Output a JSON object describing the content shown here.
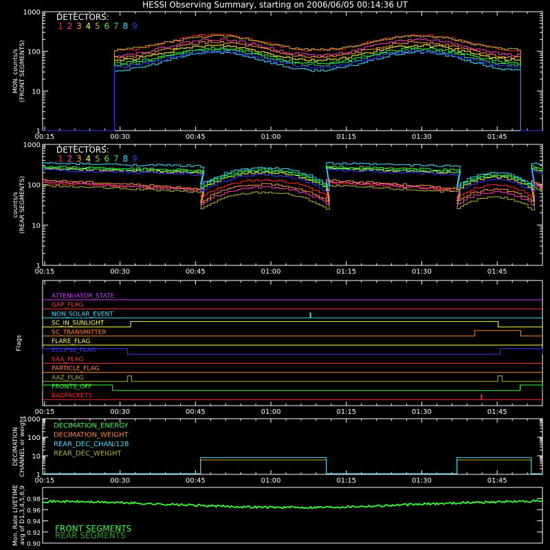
{
  "title": "HESSI Observing Summary, starting on 2006/06/05 00:14:36 UT",
  "colors": {
    "d1": "#ff2a2a",
    "d2": "#ff40b0",
    "d3": "#ff9a3c",
    "d4": "#ffff40",
    "d5": "#b5b535",
    "d6": "#3cff3c",
    "d7": "#2ad46a",
    "d8": "#40e0ff",
    "d9": "#3a3aff",
    "axes": "#ffffff"
  },
  "chart_data": [
    {
      "type": "line",
      "ylabel": [
        "MON. counts/s",
        "(FRONT SEGMENTS)"
      ],
      "yscale": "log",
      "ylim": [
        1,
        1000
      ],
      "yticks": [
        "1",
        "10",
        "100",
        "1000"
      ],
      "xlim": [
        0.2433,
        1.9
      ],
      "xticks": [
        "00:15",
        "00:30",
        "00:45",
        "01:00",
        "01:15",
        "01:30",
        "01:45"
      ],
      "legend_title": "DETECTORS:",
      "legend_entries": [
        "1",
        "2",
        "3",
        "4",
        "5",
        "6",
        "7",
        "8",
        "9"
      ],
      "legend_placement": "top-left",
      "data_start": 0.475,
      "data_end": 1.825,
      "series": [
        {
          "name": "1",
          "color_key": "d1",
          "low": 105,
          "high": 260
        },
        {
          "name": "2",
          "color_key": "d2",
          "low": 80,
          "high": 200
        },
        {
          "name": "3",
          "color_key": "d3",
          "low": 70,
          "high": 170
        },
        {
          "name": "4",
          "color_key": "d4",
          "low": 60,
          "high": 140
        },
        {
          "name": "5",
          "color_key": "d5",
          "low": 110,
          "high": 240
        },
        {
          "name": "6",
          "color_key": "d6",
          "low": 50,
          "high": 120
        },
        {
          "name": "7",
          "color_key": "d7",
          "low": 45,
          "high": 110
        },
        {
          "name": "8",
          "color_key": "d8",
          "low": 33,
          "high": 95
        },
        {
          "name": "9",
          "color_key": "d9",
          "low": 40,
          "high": 100
        }
      ]
    },
    {
      "type": "line",
      "ylabel": [
        "counts/s",
        "(REAR SEGMENTS)"
      ],
      "yscale": "log",
      "ylim": [
        1,
        1000
      ],
      "yticks": [
        "1",
        "10",
        "100",
        "1000"
      ],
      "xlim": [
        0.2433,
        1.9
      ],
      "xticks": [
        "00:15",
        "00:30",
        "00:45",
        "01:00",
        "01:15",
        "01:30",
        "01:45"
      ],
      "legend_title": "DETECTORS:",
      "legend_entries": [
        "1",
        "2",
        "3",
        "4",
        "5",
        "6",
        "7",
        "8",
        "9"
      ],
      "legend_placement": "top-left",
      "segments": [
        [
          0.2433,
          0.7667
        ],
        [
          0.7667,
          1.1833
        ],
        [
          1.1833,
          1.6167
        ],
        [
          1.6167,
          1.8633
        ],
        [
          1.8633,
          1.9
        ]
      ],
      "series": [
        {
          "name": "1",
          "color_key": "d1",
          "start": 110,
          "end": 75,
          "dip": 90
        },
        {
          "name": "2",
          "color_key": "d2",
          "start": 120,
          "end": 70,
          "dip": 60
        },
        {
          "name": "3",
          "color_key": "d3",
          "start": 130,
          "end": 80,
          "dip": 70
        },
        {
          "name": "4",
          "color_key": "d4",
          "start": 250,
          "end": 200,
          "dip": 140
        },
        {
          "name": "5",
          "color_key": "d5",
          "start": 95,
          "end": 65,
          "dip": 45
        },
        {
          "name": "6",
          "color_key": "d6",
          "start": 280,
          "end": 230,
          "dip": 160
        },
        {
          "name": "7",
          "color_key": "d7",
          "start": 260,
          "end": 210,
          "dip": 150
        },
        {
          "name": "8",
          "color_key": "d8",
          "start": 340,
          "end": 290,
          "dip": 180
        },
        {
          "name": "9",
          "color_key": "d9",
          "start": 230,
          "end": 180,
          "dip": 120
        }
      ]
    },
    {
      "type": "line",
      "ylabel": [
        "Flags"
      ],
      "xlim": [
        0.2433,
        1.9
      ],
      "xticks": [
        "00:15",
        "00:30",
        "00:45",
        "01:00",
        "01:15",
        "01:30",
        "01:45"
      ],
      "flags": [
        {
          "name": "ATTENUATOR_STATE",
          "color": "#d040ff",
          "steps": []
        },
        {
          "name": "GAP_FLAG",
          "color": "#ff3a3a",
          "steps": []
        },
        {
          "name": "NON_SOLAR_EVENT",
          "color": "#40e0ff",
          "steps": [],
          "spikes": [
            1.131
          ]
        },
        {
          "name": "SC_IN_SUNLIGHT",
          "color": "#ffff50",
          "steps": [
            [
              0.535,
              1.753
            ]
          ]
        },
        {
          "name": "SC_TRANSMITTER",
          "color": "#ff8a30",
          "steps": [
            [
              1.675,
              1.828
            ]
          ]
        },
        {
          "name": "FLARE_FLAG",
          "color": "#ffff50",
          "steps": []
        },
        {
          "name": "ECLIPSE_FLAG",
          "color": "#3a3aff",
          "steps": [
            [
              0.2433,
              0.525
            ],
            [
              1.76,
              1.9
            ]
          ]
        },
        {
          "name": "SAA_FLAG",
          "color": "#ff3a3a",
          "steps": []
        },
        {
          "name": "PARTICLE_FLAG",
          "color": "#ff8a30",
          "steps": []
        },
        {
          "name": "AAZ_FLAG",
          "color": "#b5b535",
          "steps": [
            [
              0.525,
              0.538
            ],
            [
              1.752,
              1.766
            ]
          ]
        },
        {
          "name": "FRONTS_OFF",
          "color": "#3cff3c",
          "steps": [
            [
              0.2433,
              0.475
            ],
            [
              1.826,
              1.9
            ]
          ]
        },
        {
          "name": "BADPACKETS",
          "color": "#ff2a2a",
          "steps": [],
          "spikes": [
            1.698
          ]
        }
      ]
    },
    {
      "type": "line",
      "ylabel": [
        "DECIMATION",
        "CHANNEL or weight"
      ],
      "yscale": "log",
      "ylim": [
        1,
        1000
      ],
      "yticks": [
        "1",
        "10",
        "100",
        "1000"
      ],
      "xlim": [
        0.2433,
        1.9
      ],
      "xticks": [
        "00:15",
        "00:30",
        "00:45",
        "01:00",
        "01:15",
        "01:30",
        "01:45"
      ],
      "legend_entries": [
        {
          "label": "DECIMATION_ENERGY",
          "color": "#3cff3c"
        },
        {
          "label": "DECIMATION_WEIGHT",
          "color": "#ff8a30"
        },
        {
          "label": "REAR_DEC_CHAN/128",
          "color": "#40e0ff"
        },
        {
          "label": "REAR_DEC_WEIGHT",
          "color": "#b5b535"
        }
      ],
      "rear_dec_chan_high": 8,
      "rear_dec_weight_high": 6,
      "high_intervals": [
        [
          0.7667,
          1.1833
        ],
        [
          1.6167,
          1.8633
        ]
      ]
    },
    {
      "type": "line",
      "ylabel": [
        "Mon. Rate LIVETIME",
        "avg of D1,3,4,5,6,9"
      ],
      "ylim": [
        0.9,
        1.0
      ],
      "yticks": [
        "0.90",
        "0.92",
        "0.94",
        "0.96",
        "0.98"
      ],
      "xlim": [
        0.2433,
        1.9
      ],
      "legend_entries": [
        {
          "label": "FRONT SEGMENTS",
          "color": "#3cff3c"
        },
        {
          "label": "REAR SEGMENTS",
          "color": "#2a9e2a"
        }
      ],
      "livetime_edge": 0.975,
      "livetime_min": 0.963
    }
  ]
}
